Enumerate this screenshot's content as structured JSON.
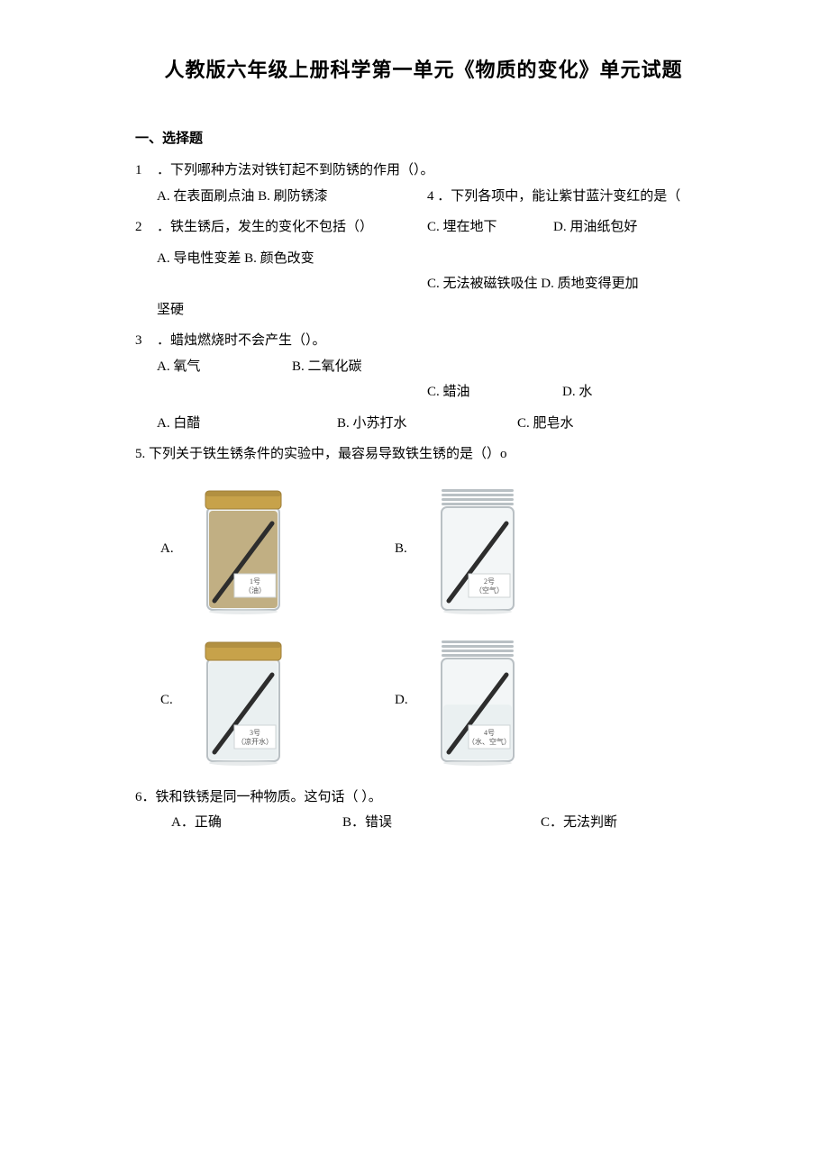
{
  "title": "人教版六年级上册科学第一单元《物质的变化》单元试题",
  "section1": "一、选择题",
  "q1": {
    "num": "1",
    "stem": "．下列哪种方法对铁钉起不到防锈的作用（）。",
    "optAB": "A. 在表面刷点油 B. 刷防锈漆",
    "optC": "C. 埋在地下",
    "optD": "D. 用油纸包好"
  },
  "q4_inline": "4 ．下列各项中，能让紫甘蓝汁变红的是（",
  "q2": {
    "num": "2",
    "stem": "．铁生锈后，发生的变化不包括（）",
    "optAB": "A. 导电性变差 B. 颜色改变",
    "optCD": "C. 无法被磁铁吸住 D. 质地变得更加",
    "tail": "坚硬"
  },
  "q3": {
    "num": "3",
    "stem": "．蜡烛燃烧时不会产生（）。",
    "optA": "A. 氧气",
    "optB": "B. 二氧化碳",
    "optC": "C. 蜡油",
    "optD": "D. 水"
  },
  "q4_opts": {
    "A": "A. 白醋",
    "B": "B. 小苏打水",
    "C": "C. 肥皂水"
  },
  "q5": {
    "stem": "5. 下列关于铁生锈条件的实验中，最容易导致铁生锈的是（）o",
    "jarA": {
      "label": "A.",
      "tag1": "1号",
      "tag2": "（油）",
      "lid": true,
      "fill": "#b7a26e"
    },
    "jarB": {
      "label": "B.",
      "tag1": "2号",
      "tag2": "（空气）",
      "lid": false,
      "fill": "none"
    },
    "jarC": {
      "label": "C.",
      "tag1": "3号",
      "tag2": "（凉开水）",
      "lid": true,
      "fill": "#e8eef0"
    },
    "jarD": {
      "label": "D.",
      "tag1": "4号",
      "tag2": "（水、空气）",
      "lid": false,
      "fill": "#e8eef0",
      "half": true
    }
  },
  "q6": {
    "stem": "6．铁和铁锈是同一种物质。这句话（   ）。",
    "A": "A．正确",
    "B": "B．错误",
    "C": "C．无法判断"
  },
  "colors": {
    "lid": "#c7a24a",
    "lid_dark": "#9e7e38",
    "glass_stroke": "#b9c0c4",
    "glass_fill": "#f3f6f7",
    "nail": "#2d2d2d",
    "label_bg": "#ffffff",
    "label_stroke": "#cfd4d6"
  }
}
